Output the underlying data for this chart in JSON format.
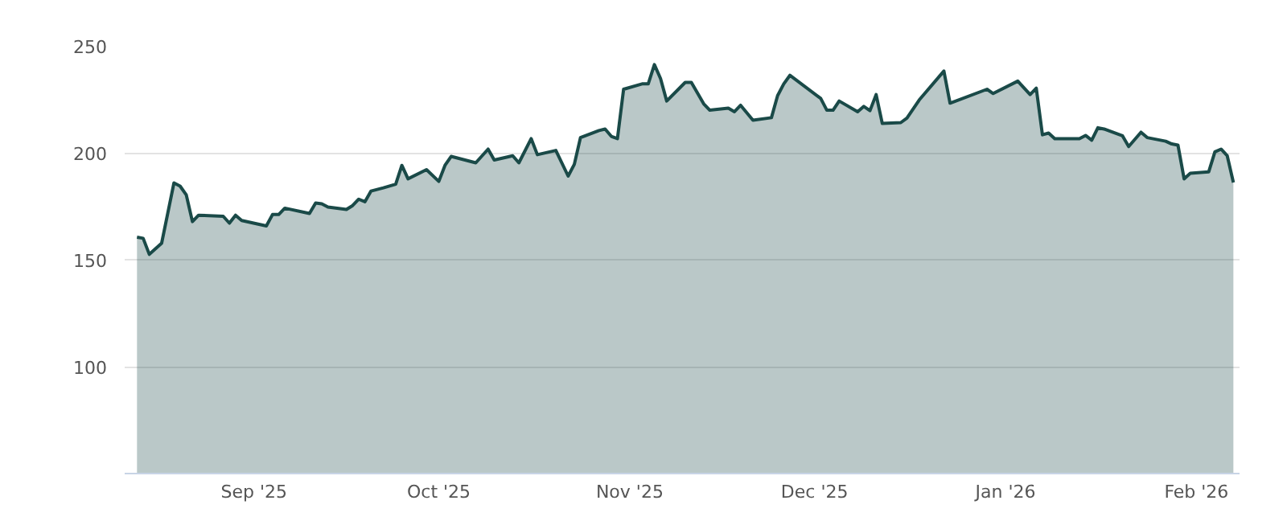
{
  "chart_data": {
    "type": "area",
    "color": "#1a4a48",
    "grid": "y",
    "ylim": [
      50,
      250
    ],
    "yticks": [
      100,
      150,
      200,
      250
    ],
    "xlim": [
      "2025-08-11",
      "2026-02-08"
    ],
    "xticks": [
      {
        "value": "2025-09-01",
        "label": "Sep '25"
      },
      {
        "value": "2025-10-01",
        "label": "Oct '25"
      },
      {
        "value": "2025-11-01",
        "label": "Nov '25"
      },
      {
        "value": "2025-12-01",
        "label": "Dec '25"
      },
      {
        "value": "2026-01-01",
        "label": "Jan '26"
      },
      {
        "value": "2026-02-01",
        "label": "Feb '26"
      }
    ],
    "x": [
      "2025-08-13",
      "2025-08-14",
      "2025-08-15",
      "2025-08-17",
      "2025-08-19",
      "2025-08-20",
      "2025-08-21",
      "2025-08-22",
      "2025-08-23",
      "2025-08-27",
      "2025-08-28",
      "2025-08-29",
      "2025-08-30",
      "2025-09-03",
      "2025-09-04",
      "2025-09-05",
      "2025-09-06",
      "2025-09-10",
      "2025-09-11",
      "2025-09-12",
      "2025-09-13",
      "2025-09-16",
      "2025-09-17",
      "2025-09-18",
      "2025-09-19",
      "2025-09-20",
      "2025-09-22",
      "2025-09-24",
      "2025-09-25",
      "2025-09-26",
      "2025-09-29",
      "2025-10-01",
      "2025-10-02",
      "2025-10-03",
      "2025-10-07",
      "2025-10-09",
      "2025-10-10",
      "2025-10-13",
      "2025-10-14",
      "2025-10-16",
      "2025-10-17",
      "2025-10-20",
      "2025-10-22",
      "2025-10-23",
      "2025-10-24",
      "2025-10-27",
      "2025-10-28",
      "2025-10-29",
      "2025-10-30",
      "2025-10-31",
      "2025-11-03",
      "2025-11-04",
      "2025-11-05",
      "2025-11-06",
      "2025-11-07",
      "2025-11-10",
      "2025-11-11",
      "2025-11-13",
      "2025-11-14",
      "2025-11-17",
      "2025-11-18",
      "2025-11-19",
      "2025-11-21",
      "2025-11-24",
      "2025-11-25",
      "2025-11-26",
      "2025-11-27",
      "2025-12-02",
      "2025-12-03",
      "2025-12-04",
      "2025-12-05",
      "2025-12-08",
      "2025-12-09",
      "2025-12-10",
      "2025-12-11",
      "2025-12-12",
      "2025-12-15",
      "2025-12-16",
      "2025-12-18",
      "2025-12-22",
      "2025-12-23",
      "2025-12-29",
      "2025-12-30",
      "2026-01-03",
      "2026-01-05",
      "2026-01-06",
      "2026-01-07",
      "2026-01-08",
      "2026-01-09",
      "2026-01-13",
      "2026-01-14",
      "2026-01-15",
      "2026-01-16",
      "2026-01-17",
      "2026-01-20",
      "2026-01-21",
      "2026-01-23",
      "2026-01-24",
      "2026-01-27",
      "2026-01-28",
      "2026-01-29",
      "2026-01-30",
      "2026-01-31",
      "2026-02-03",
      "2026-02-04",
      "2026-02-05",
      "2026-02-06",
      "2026-02-07"
    ],
    "values": [
      160.5,
      160,
      152.5,
      157.7,
      185.9,
      184.4,
      180.3,
      167.8,
      170.8,
      170.3,
      167.1,
      170.8,
      168.3,
      165.8,
      171.1,
      171.1,
      174.1,
      171.6,
      176.5,
      176.1,
      174.6,
      173.5,
      175.3,
      178.3,
      177.1,
      182.1,
      183.6,
      185.3,
      194.1,
      187.8,
      192.1,
      186.6,
      194.1,
      198.3,
      195.3,
      201.7,
      196.6,
      198.6,
      195.3,
      206.6,
      199.1,
      201.1,
      189.1,
      194.6,
      207.1,
      210.4,
      211.1,
      207.7,
      206.6,
      229.7,
      232.2,
      232.2,
      241.2,
      234.7,
      224.2,
      232.9,
      232.9,
      222.9,
      219.9,
      220.9,
      219.2,
      222.2,
      215.2,
      216.4,
      226.7,
      232.2,
      236.2,
      225.4,
      219.9,
      219.9,
      224.2,
      219.2,
      221.7,
      219.7,
      227.2,
      213.7,
      214.1,
      216.2,
      224.7,
      238.2,
      223.2,
      229.7,
      227.7,
      233.5,
      227.2,
      230.2,
      208.4,
      209.2,
      206.6,
      206.6,
      208.1,
      205.9,
      211.7,
      211.1,
      207.9,
      202.9,
      209.6,
      207.1,
      205.4,
      204.1,
      203.6,
      187.8,
      190.4,
      191.1,
      200.4,
      201.7,
      198.6,
      186.1
    ]
  }
}
